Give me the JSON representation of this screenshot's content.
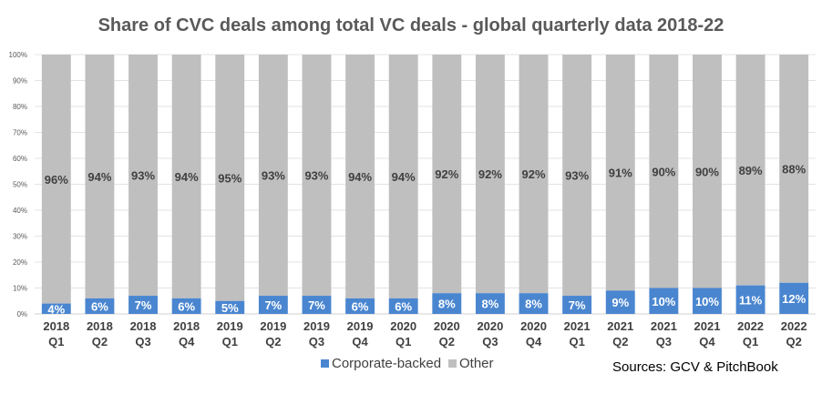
{
  "chart_data": {
    "type": "bar",
    "stacked": true,
    "title": "Share of CVC deals among total VC deals - global quarterly data  2018-22",
    "categories": [
      [
        "2018",
        "Q1"
      ],
      [
        "2018",
        "Q2"
      ],
      [
        "2018",
        "Q3"
      ],
      [
        "2018",
        "Q4"
      ],
      [
        "2019",
        "Q1"
      ],
      [
        "2019",
        "Q2"
      ],
      [
        "2019",
        "Q3"
      ],
      [
        "2019",
        "Q4"
      ],
      [
        "2020",
        "Q1"
      ],
      [
        "2020",
        "Q2"
      ],
      [
        "2020",
        "Q3"
      ],
      [
        "2020",
        "Q4"
      ],
      [
        "2021",
        "Q1"
      ],
      [
        "2021",
        "Q2"
      ],
      [
        "2021",
        "Q3"
      ],
      [
        "2021",
        "Q4"
      ],
      [
        "2022",
        "Q1"
      ],
      [
        "2022",
        "Q2"
      ]
    ],
    "series": [
      {
        "name": "Corporate-backed",
        "color": "#4A86D0",
        "values": [
          4,
          6,
          7,
          6,
          5,
          7,
          7,
          6,
          6,
          8,
          8,
          8,
          7,
          9,
          10,
          10,
          11,
          12
        ],
        "labels": [
          "4%",
          "6%",
          "7%",
          "6%",
          "5%",
          "7%",
          "7%",
          "6%",
          "6%",
          "8%",
          "8%",
          "8%",
          "7%",
          "9%",
          "10%",
          "10%",
          "11%",
          "12%"
        ]
      },
      {
        "name": "Other",
        "color": "#BFBFBF",
        "values": [
          96,
          94,
          93,
          94,
          95,
          93,
          93,
          94,
          94,
          92,
          92,
          92,
          93,
          91,
          90,
          90,
          89,
          88
        ],
        "labels": [
          "96%",
          "94%",
          "93%",
          "94%",
          "95%",
          "93%",
          "93%",
          "94%",
          "94%",
          "92%",
          "92%",
          "92%",
          "93%",
          "91%",
          "90%",
          "90%",
          "89%",
          "88%"
        ]
      }
    ],
    "ylim": [
      0,
      100
    ],
    "yticks": [
      "0%",
      "10%",
      "20%",
      "30%",
      "40%",
      "50%",
      "60%",
      "70%",
      "80%",
      "90%",
      "100%"
    ],
    "grid": true,
    "legend": "bottom"
  },
  "source_note": "Sources: GCV & PitchBook"
}
